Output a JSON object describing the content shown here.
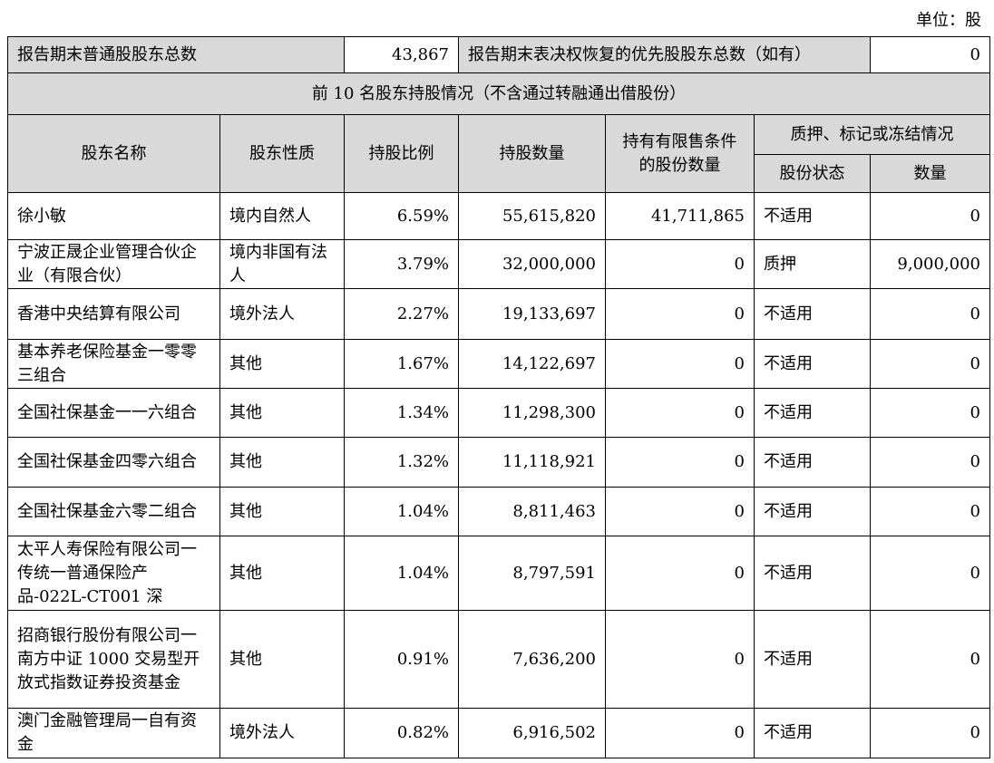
{
  "unit_label": "单位：股",
  "summary": {
    "common_holders_label": "报告期末普通股股东总数",
    "common_holders_value": "43,867",
    "preferred_holders_label": "报告期末表决权恢复的优先股股东总数（如有）",
    "preferred_holders_value": "0"
  },
  "section_title": "前 10 名股东持股情况（不含通过转融通出借股份）",
  "headers": {
    "name": "股东名称",
    "nature": "股东性质",
    "ratio": "持股比例",
    "quantity": "持股数量",
    "restricted": "持有有限售条件的股份数量",
    "pledge_group": "质押、标记或冻结情况",
    "pledge_status": "股份状态",
    "pledge_quantity": "数量"
  },
  "colors": {
    "header_bg": "#d9d9d9"
  },
  "rows": [
    {
      "name": "徐小敏",
      "nature": "境内自然人",
      "ratio": "6.59%",
      "quantity": "55,615,820",
      "restricted": "41,711,865",
      "status": "不适用",
      "pledged": "0"
    },
    {
      "name": "宁波正晟企业管理合伙企业（有限合伙）",
      "nature": "境内非国有法人",
      "ratio": "3.79%",
      "quantity": "32,000,000",
      "restricted": "0",
      "status": "质押",
      "pledged": "9,000,000"
    },
    {
      "name": "香港中央结算有限公司",
      "nature": "境外法人",
      "ratio": "2.27%",
      "quantity": "19,133,697",
      "restricted": "0",
      "status": "不适用",
      "pledged": "0"
    },
    {
      "name": "基本养老保险基金一零零三组合",
      "nature": "其他",
      "ratio": "1.67%",
      "quantity": "14,122,697",
      "restricted": "0",
      "status": "不适用",
      "pledged": "0"
    },
    {
      "name": "全国社保基金一一六组合",
      "nature": "其他",
      "ratio": "1.34%",
      "quantity": "11,298,300",
      "restricted": "0",
      "status": "不适用",
      "pledged": "0"
    },
    {
      "name": "全国社保基金四零六组合",
      "nature": "其他",
      "ratio": "1.32%",
      "quantity": "11,118,921",
      "restricted": "0",
      "status": "不适用",
      "pledged": "0"
    },
    {
      "name": "全国社保基金六零二组合",
      "nature": "其他",
      "ratio": "1.04%",
      "quantity": "8,811,463",
      "restricted": "0",
      "status": "不适用",
      "pledged": "0"
    },
    {
      "name": "太平人寿保险有限公司一传统一普通保险产品-022L-CT001 深",
      "nature": "其他",
      "ratio": "1.04%",
      "quantity": "8,797,591",
      "restricted": "0",
      "status": "不适用",
      "pledged": "0"
    },
    {
      "name": "招商银行股份有限公司一南方中证 1000 交易型开放式指数证券投资基金",
      "nature": "其他",
      "ratio": "0.91%",
      "quantity": "7,636,200",
      "restricted": "0",
      "status": "不适用",
      "pledged": "0"
    },
    {
      "name": "澳门金融管理局一自有资金",
      "nature": "境外法人",
      "ratio": "0.82%",
      "quantity": "6,916,502",
      "restricted": "0",
      "status": "不适用",
      "pledged": "0"
    }
  ]
}
